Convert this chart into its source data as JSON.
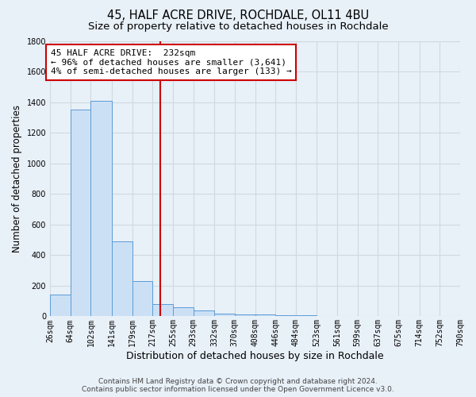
{
  "title": "45, HALF ACRE DRIVE, ROCHDALE, OL11 4BU",
  "subtitle": "Size of property relative to detached houses in Rochdale",
  "xlabel": "Distribution of detached houses by size in Rochdale",
  "ylabel": "Number of detached properties",
  "footer_line1": "Contains HM Land Registry data © Crown copyright and database right 2024.",
  "footer_line2": "Contains public sector information licensed under the Open Government Licence v3.0.",
  "bar_edges": [
    26,
    64,
    102,
    141,
    179,
    217,
    255,
    293,
    332,
    370,
    408,
    446,
    484,
    523,
    561,
    599,
    637,
    675,
    714,
    752,
    790
  ],
  "bar_heights": [
    140,
    1350,
    1410,
    490,
    230,
    80,
    60,
    40,
    20,
    15,
    10,
    8,
    5,
    4,
    3,
    2,
    2,
    1,
    1,
    1
  ],
  "bar_color": "#cce0f5",
  "bar_edge_color": "#5b9bd5",
  "property_size": 232,
  "vline_color": "#cc0000",
  "annotation_line1": "45 HALF ACRE DRIVE:  232sqm",
  "annotation_line2": "← 96% of detached houses are smaller (3,641)",
  "annotation_line3": "4% of semi-detached houses are larger (133) →",
  "annotation_box_color": "#ffffff",
  "annotation_box_edge": "#cc0000",
  "ylim": [
    0,
    1800
  ],
  "tick_labels": [
    "26sqm",
    "64sqm",
    "102sqm",
    "141sqm",
    "179sqm",
    "217sqm",
    "255sqm",
    "293sqm",
    "332sqm",
    "370sqm",
    "408sqm",
    "446sqm",
    "484sqm",
    "523sqm",
    "561sqm",
    "599sqm",
    "637sqm",
    "675sqm",
    "714sqm",
    "752sqm",
    "790sqm"
  ],
  "background_color": "#e8f0f8",
  "grid_color": "#d0d8e0",
  "title_fontsize": 10.5,
  "subtitle_fontsize": 9.5,
  "ylabel_fontsize": 8.5,
  "xlabel_fontsize": 9,
  "tick_fontsize": 7,
  "annotation_fontsize": 8,
  "footer_fontsize": 6.5
}
